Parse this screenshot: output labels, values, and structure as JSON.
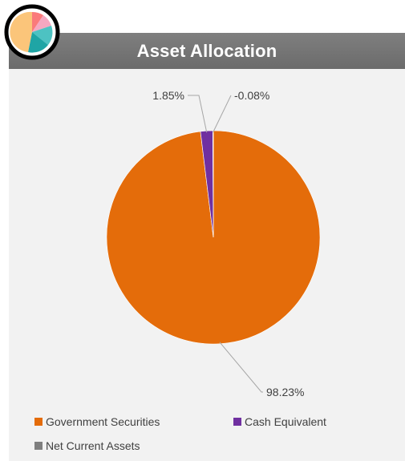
{
  "chart_data": {
    "type": "pie",
    "title": "Asset Allocation",
    "categories": [
      "Government Securities",
      "Cash Equivalent",
      "Net Current Assets"
    ],
    "values": [
      98.23,
      1.85,
      -0.08
    ],
    "data_labels": [
      "98.23%",
      "1.85%",
      "-0.08%"
    ],
    "colors": [
      "#e46c0a",
      "#7030a0",
      "#7f7f7f"
    ],
    "legend_position": "bottom"
  },
  "logo": {
    "icon": "pie-chart-icon"
  }
}
